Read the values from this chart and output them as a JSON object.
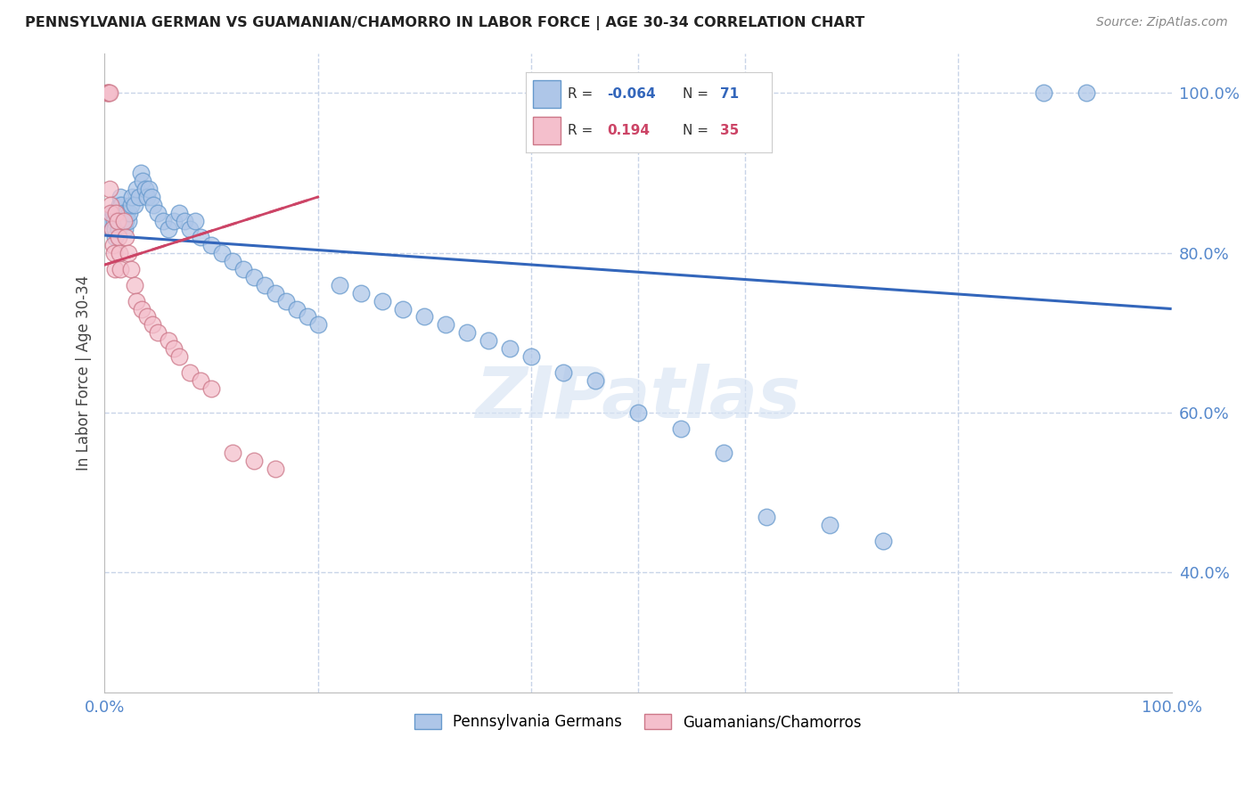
{
  "title": "PENNSYLVANIA GERMAN VS GUAMANIAN/CHAMORRO IN LABOR FORCE | AGE 30-34 CORRELATION CHART",
  "source": "Source: ZipAtlas.com",
  "ylabel": "In Labor Force | Age 30-34",
  "xlim": [
    0.0,
    1.0
  ],
  "ylim": [
    0.25,
    1.05
  ],
  "x_tick_positions": [
    0.0,
    0.2,
    0.4,
    0.6,
    0.8,
    1.0
  ],
  "x_tick_labels": [
    "0.0%",
    "",
    "",
    "",
    "",
    "100.0%"
  ],
  "y_tick_positions": [
    0.4,
    0.6,
    0.8,
    1.0
  ],
  "y_tick_labels": [
    "40.0%",
    "60.0%",
    "80.0%",
    "100.0%"
  ],
  "blue_R": "-0.064",
  "blue_N": "71",
  "pink_R": "0.194",
  "pink_N": "35",
  "blue_fill_color": "#aec6e8",
  "pink_fill_color": "#f4bfcc",
  "blue_edge_color": "#6699cc",
  "pink_edge_color": "#cc7788",
  "blue_line_color": "#3366bb",
  "pink_line_color": "#cc4466",
  "blue_label": "Pennsylvania Germans",
  "pink_label": "Guamanians/Chamorros",
  "watermark": "ZIPatlas",
  "blue_points_x": [
    0.005,
    0.007,
    0.008,
    0.009,
    0.01,
    0.01,
    0.011,
    0.012,
    0.013,
    0.014,
    0.015,
    0.016,
    0.017,
    0.018,
    0.019,
    0.02,
    0.021,
    0.022,
    0.023,
    0.025,
    0.026,
    0.028,
    0.03,
    0.032,
    0.034,
    0.036,
    0.038,
    0.04,
    0.042,
    0.044,
    0.046,
    0.05,
    0.055,
    0.06,
    0.065,
    0.07,
    0.075,
    0.08,
    0.085,
    0.09,
    0.1,
    0.11,
    0.12,
    0.13,
    0.14,
    0.15,
    0.16,
    0.17,
    0.18,
    0.19,
    0.2,
    0.22,
    0.24,
    0.26,
    0.28,
    0.3,
    0.32,
    0.34,
    0.36,
    0.38,
    0.4,
    0.43,
    0.46,
    0.5,
    0.54,
    0.58,
    0.62,
    0.68,
    0.73,
    0.88,
    0.92
  ],
  "blue_points_y": [
    0.84,
    0.83,
    0.85,
    0.84,
    0.82,
    0.83,
    0.85,
    0.84,
    0.83,
    0.86,
    0.87,
    0.86,
    0.85,
    0.84,
    0.83,
    0.84,
    0.85,
    0.84,
    0.85,
    0.86,
    0.87,
    0.86,
    0.88,
    0.87,
    0.9,
    0.89,
    0.88,
    0.87,
    0.88,
    0.87,
    0.86,
    0.85,
    0.84,
    0.83,
    0.84,
    0.85,
    0.84,
    0.83,
    0.84,
    0.82,
    0.81,
    0.8,
    0.79,
    0.78,
    0.77,
    0.76,
    0.75,
    0.74,
    0.73,
    0.72,
    0.71,
    0.76,
    0.75,
    0.74,
    0.73,
    0.72,
    0.71,
    0.7,
    0.69,
    0.68,
    0.67,
    0.65,
    0.64,
    0.6,
    0.58,
    0.55,
    0.47,
    0.46,
    0.44,
    1.0,
    1.0
  ],
  "pink_points_x": [
    0.002,
    0.003,
    0.004,
    0.005,
    0.005,
    0.006,
    0.006,
    0.007,
    0.008,
    0.009,
    0.01,
    0.011,
    0.012,
    0.013,
    0.014,
    0.015,
    0.018,
    0.02,
    0.022,
    0.025,
    0.028,
    0.03,
    0.035,
    0.04,
    0.045,
    0.05,
    0.06,
    0.065,
    0.07,
    0.08,
    0.09,
    0.1,
    0.12,
    0.14,
    0.16
  ],
  "pink_points_y": [
    1.0,
    1.0,
    1.0,
    1.0,
    0.88,
    0.86,
    0.85,
    0.83,
    0.81,
    0.8,
    0.78,
    0.85,
    0.84,
    0.82,
    0.8,
    0.78,
    0.84,
    0.82,
    0.8,
    0.78,
    0.76,
    0.74,
    0.73,
    0.72,
    0.71,
    0.7,
    0.69,
    0.68,
    0.67,
    0.65,
    0.64,
    0.63,
    0.55,
    0.54,
    0.53
  ],
  "blue_trend_x": [
    0.0,
    1.0
  ],
  "blue_trend_y": [
    0.822,
    0.73
  ],
  "pink_trend_x": [
    0.0,
    0.2
  ],
  "pink_trend_y": [
    0.785,
    0.87
  ],
  "grid_color": "#c8d4e8",
  "background_color": "#ffffff",
  "tick_color": "#5588cc",
  "ylabel_color": "#444444"
}
